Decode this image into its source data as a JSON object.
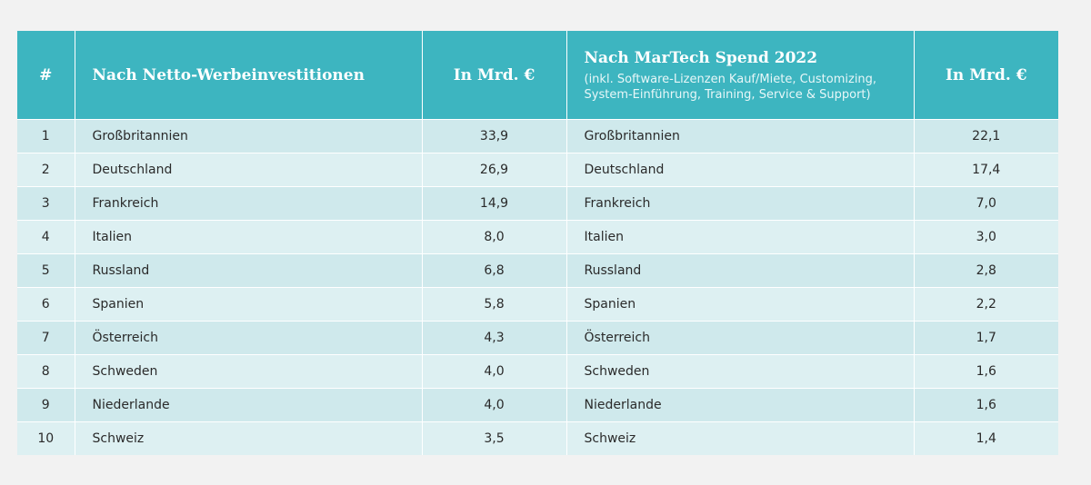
{
  "header": {
    "rank": "#",
    "col_net": "Nach Netto-Werbeinvestitionen",
    "col_net_unit": "In Mrd. €",
    "col_martech": "Nach MarTech Spend 2022",
    "col_martech_note": "(inkl. Software-Lizenzen Kauf/Miete, Customizing, System-Einführung, Training, Service & Support)",
    "col_martech_unit": "In Mrd. €"
  },
  "rows": [
    {
      "rank": "1",
      "net_country": "Großbritannien",
      "net_value": "33,9",
      "martech_country": "Großbritannien",
      "martech_value": "22,1"
    },
    {
      "rank": "2",
      "net_country": "Deutschland",
      "net_value": "26,9",
      "martech_country": "Deutschland",
      "martech_value": "17,4"
    },
    {
      "rank": "3",
      "net_country": "Frankreich",
      "net_value": "14,9",
      "martech_country": "Frankreich",
      "martech_value": "7,0"
    },
    {
      "rank": "4",
      "net_country": "Italien",
      "net_value": "8,0",
      "martech_country": "Italien",
      "martech_value": "3,0"
    },
    {
      "rank": "5",
      "net_country": "Russland",
      "net_value": "6,8",
      "martech_country": "Russland",
      "martech_value": "2,8"
    },
    {
      "rank": "6",
      "net_country": "Spanien",
      "net_value": "5,8",
      "martech_country": "Spanien",
      "martech_value": "2,2"
    },
    {
      "rank": "7",
      "net_country": "Österreich",
      "net_value": "4,3",
      "martech_country": "Österreich",
      "martech_value": "1,7"
    },
    {
      "rank": "8",
      "net_country": "Schweden",
      "net_value": "4,0",
      "martech_country": "Schweden",
      "martech_value": "1,6"
    },
    {
      "rank": "9",
      "net_country": "Niederlande",
      "net_value": "4,0",
      "martech_country": "Niederlande",
      "martech_value": "1,6"
    },
    {
      "rank": "10",
      "net_country": "Schweiz",
      "net_value": "3,5",
      "martech_country": "Schweiz",
      "martech_value": "1,4"
    }
  ],
  "colors": {
    "header_bg": "#3db5c0",
    "row_odd": "#cfe9ec",
    "row_even": "#ddf0f2",
    "page_bg": "#f2f2f2"
  }
}
